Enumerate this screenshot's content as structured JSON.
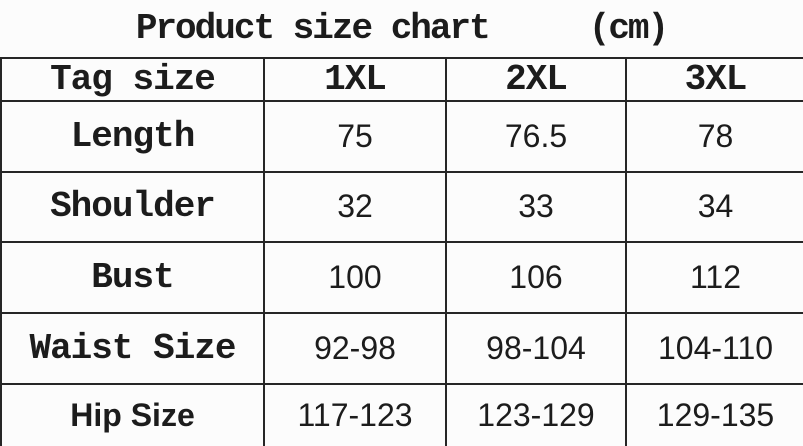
{
  "title": {
    "text": "Product size chart",
    "unit": "(cm)"
  },
  "chart_data": {
    "type": "table",
    "title": "Product size chart (cm)",
    "columns": [
      "Tag size",
      "1XL",
      "2XL",
      "3XL"
    ],
    "rows": [
      [
        "Length",
        "75",
        "76.5",
        "78"
      ],
      [
        "Shoulder",
        "32",
        "33",
        "34"
      ],
      [
        "Bust",
        "100",
        "106",
        "112"
      ],
      [
        "Waist Size",
        "92-98",
        "98-104",
        "104-110"
      ],
      [
        "Hip Size",
        "117-123",
        "123-129",
        "129-135"
      ]
    ]
  },
  "colors": {
    "text": "#1c1c1c",
    "line": "#262626",
    "background": "#fcfcfc"
  }
}
